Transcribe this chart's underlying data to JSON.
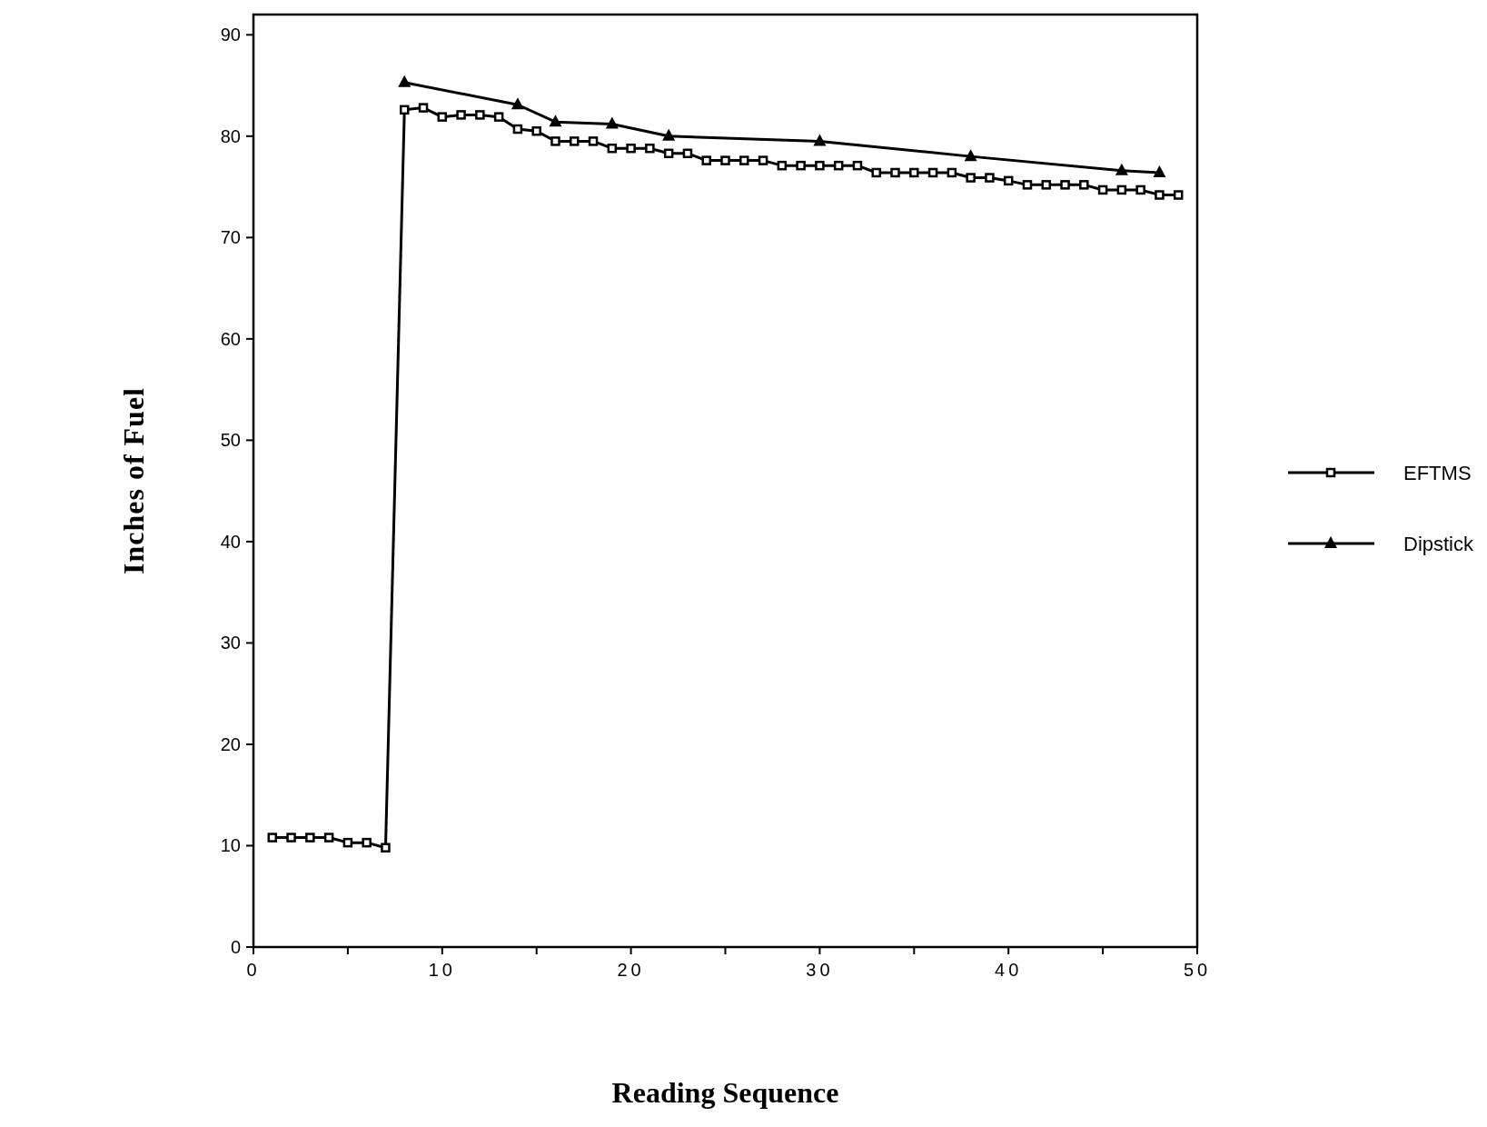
{
  "chart_data": {
    "type": "line",
    "xlabel": "Reading Sequence",
    "ylabel": "Inches of Fuel",
    "xlim": [
      0,
      50
    ],
    "ylim": [
      0,
      92
    ],
    "xticks": [
      0,
      {
        "value": 5,
        "label": null
      },
      10,
      {
        "value": 15,
        "label": null
      },
      20,
      {
        "value": 25,
        "label": null
      },
      30,
      {
        "value": 35,
        "label": null
      },
      40,
      {
        "value": 45,
        "label": null
      },
      50
    ],
    "yticks": [
      0,
      10,
      20,
      30,
      40,
      50,
      60,
      70,
      80,
      90
    ],
    "legend": "right",
    "grid": false,
    "line_style": "solid",
    "series": [
      {
        "name": "EFTMS",
        "color": "#000000",
        "marker": "square",
        "x": [
          1,
          2,
          3,
          4,
          5,
          6,
          7,
          8,
          9,
          10,
          11,
          12,
          13,
          14,
          15,
          16,
          17,
          18,
          19,
          20,
          21,
          22,
          23,
          24,
          25,
          26,
          27,
          28,
          29,
          30,
          31,
          32,
          33,
          34,
          35,
          36,
          37,
          38,
          39,
          40,
          41,
          42,
          43,
          44,
          45,
          46,
          47,
          48,
          49
        ],
        "values": [
          10.8,
          10.8,
          10.8,
          10.8,
          10.3,
          10.3,
          9.8,
          82.6,
          82.8,
          81.9,
          82.1,
          82.1,
          81.9,
          80.7,
          80.5,
          79.5,
          79.5,
          79.5,
          78.8,
          78.8,
          78.8,
          78.3,
          78.3,
          77.6,
          77.6,
          77.6,
          77.6,
          77.1,
          77.1,
          77.1,
          77.1,
          77.1,
          76.4,
          76.4,
          76.4,
          76.4,
          76.4,
          75.9,
          75.9,
          75.6,
          75.2,
          75.2,
          75.2,
          75.2,
          74.7,
          74.7,
          74.7,
          74.2,
          74.2
        ]
      },
      {
        "name": "Dipstick",
        "color": "#000000",
        "marker": "triangle",
        "x": [
          8,
          14,
          16,
          19,
          22,
          30,
          38,
          46,
          48
        ],
        "values": [
          85.3,
          83.1,
          81.4,
          81.2,
          80.0,
          79.5,
          78.0,
          76.6,
          76.4
        ]
      }
    ]
  }
}
